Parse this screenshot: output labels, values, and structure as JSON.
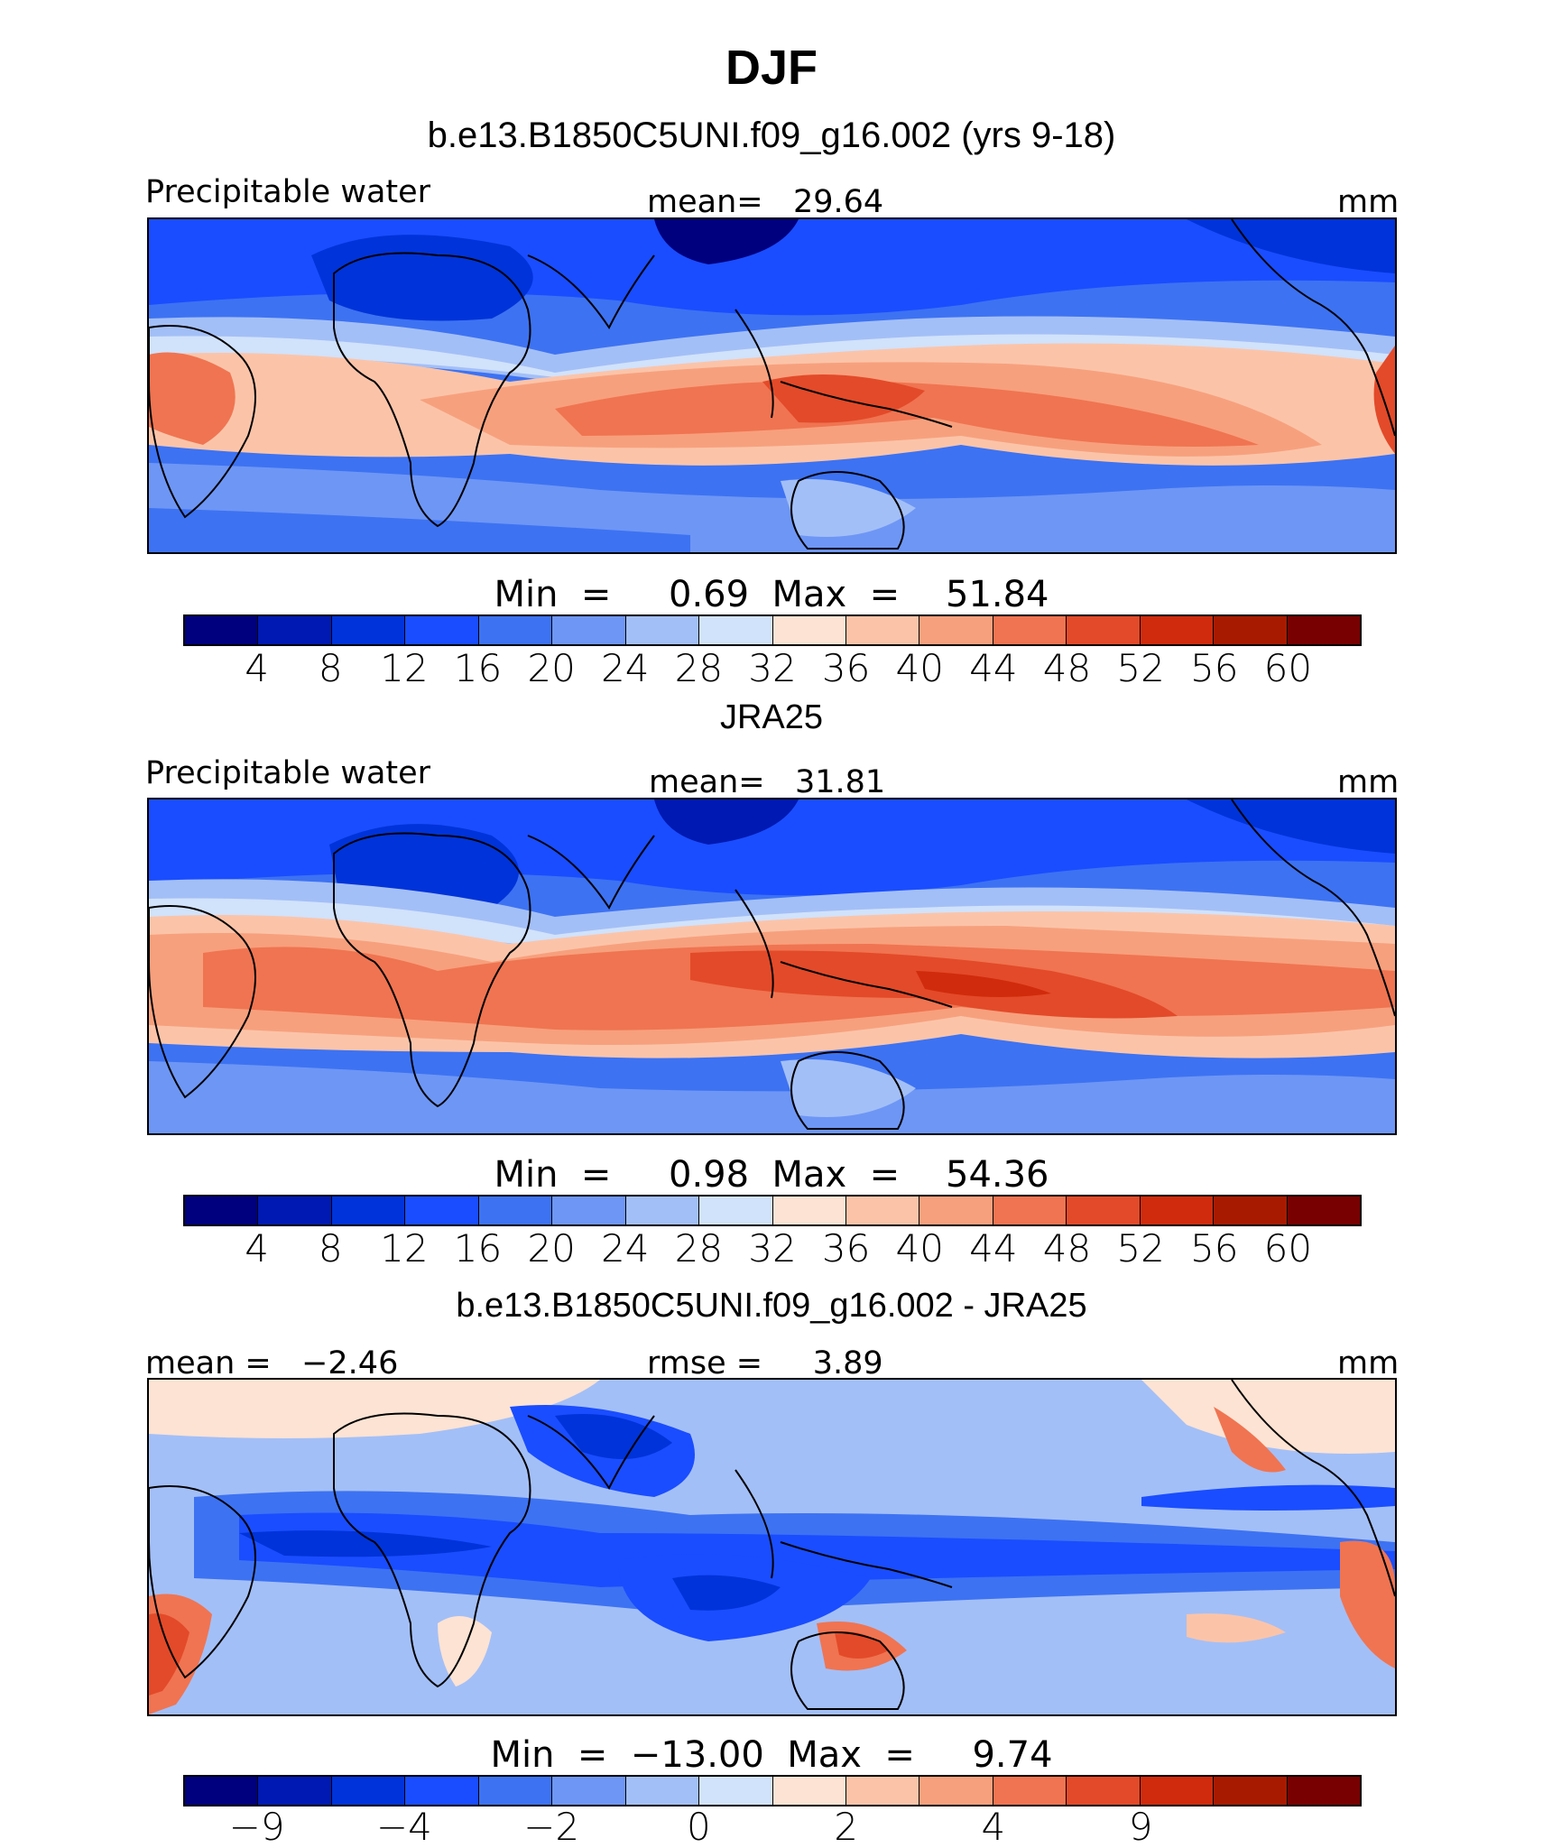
{
  "figure": {
    "season": "DJF",
    "model_title": "b.e13.B1850C5UNI.f09_g16.002 (yrs 9-18)",
    "obs_title": "JRA25",
    "diff_title": "b.e13.B1850C5UNI.f09_g16.002 - JRA25"
  },
  "panels": [
    {
      "variable": "Precipitable water",
      "center_label": "mean=   29.64",
      "units": "mm",
      "minmax": "Min  =     0.69  Max  =    51.84",
      "colorbar": {
        "colors": [
          "#00007f",
          "#0019b2",
          "#0033d9",
          "#1a4dff",
          "#3d72f2",
          "#6e96f5",
          "#a3bff7",
          "#d1e2fb",
          "#fde3d3",
          "#fbc4a9",
          "#f7a07d",
          "#f07451",
          "#e34a29",
          "#d02b0c",
          "#a81a00",
          "#780000"
        ],
        "tick_labels": [
          "4",
          "8",
          "12",
          "16",
          "20",
          "24",
          "28",
          "32",
          "36",
          "40",
          "44",
          "48",
          "52",
          "56",
          "60"
        ]
      },
      "map_fill": "model"
    },
    {
      "variable": "Precipitable water",
      "center_label": "mean=   31.81",
      "units": "mm",
      "minmax": "Min  =     0.98  Max  =    54.36",
      "colorbar": {
        "colors": [
          "#00007f",
          "#0019b2",
          "#0033d9",
          "#1a4dff",
          "#3d72f2",
          "#6e96f5",
          "#a3bff7",
          "#d1e2fb",
          "#fde3d3",
          "#fbc4a9",
          "#f7a07d",
          "#f07451",
          "#e34a29",
          "#d02b0c",
          "#a81a00",
          "#780000"
        ],
        "tick_labels": [
          "4",
          "8",
          "12",
          "16",
          "20",
          "24",
          "28",
          "32",
          "36",
          "40",
          "44",
          "48",
          "52",
          "56",
          "60"
        ]
      },
      "map_fill": "obs"
    },
    {
      "left_label": "mean =   −2.46",
      "center_label": "rmse =     3.89",
      "units": "mm",
      "minmax": "Min  =  −13.00  Max  =     9.74",
      "colorbar": {
        "colors": [
          "#00007f",
          "#0019b2",
          "#0033d9",
          "#1a4dff",
          "#3d72f2",
          "#6e96f5",
          "#a3bff7",
          "#d1e2fb",
          "#fde3d3",
          "#fbc4a9",
          "#f7a07d",
          "#f07451",
          "#e34a29",
          "#d02b0c",
          "#a81a00",
          "#780000"
        ],
        "tick_labels": [
          "−9",
          "−4",
          "−2",
          "0",
          "2",
          "4",
          "9"
        ]
      },
      "map_fill": "diff"
    }
  ]
}
